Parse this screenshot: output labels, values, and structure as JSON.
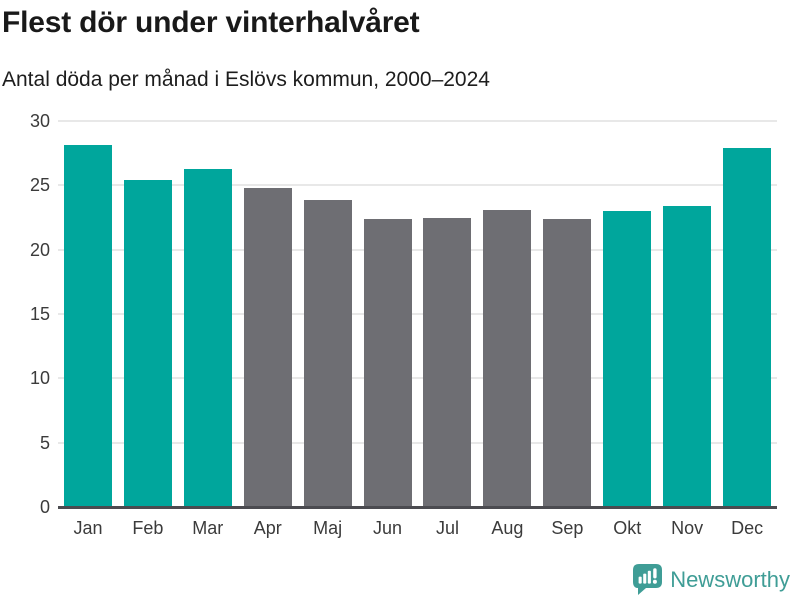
{
  "chart_data": {
    "type": "bar",
    "title": "Flest dör under vinterhalvåret",
    "subtitle": "Antal döda per månad i Eslövs kommun, 2000–2024",
    "categories": [
      "Jan",
      "Feb",
      "Mar",
      "Apr",
      "Maj",
      "Jun",
      "Jul",
      "Aug",
      "Sep",
      "Okt",
      "Nov",
      "Dec"
    ],
    "values": [
      28.1,
      25.4,
      26.3,
      24.8,
      23.9,
      22.4,
      22.5,
      23.1,
      22.4,
      23.0,
      23.4,
      27.9
    ],
    "bar_colors": [
      "#00a69c",
      "#00a69c",
      "#00a69c",
      "#6e6e73",
      "#6e6e73",
      "#6e6e73",
      "#6e6e73",
      "#6e6e73",
      "#6e6e73",
      "#00a69c",
      "#00a69c",
      "#00a69c"
    ],
    "highlight_months": [
      "Jan",
      "Feb",
      "Mar",
      "Okt",
      "Nov",
      "Dec"
    ],
    "xlabel": "",
    "ylabel": "",
    "ylim": [
      0,
      30
    ],
    "yticks": [
      0,
      5,
      10,
      15,
      20,
      25,
      30
    ],
    "grid": true,
    "legend": false
  },
  "colors": {
    "bar_highlight": "#00a69c",
    "bar_base": "#6e6e73",
    "gridline": "#e8e8e8",
    "axis_line": "#4b4b50",
    "title_text": "#191919",
    "axis_text": "#3b3b3b",
    "brand_teal": "#3f9d96"
  },
  "footer": {
    "brand_label": "Newsworthy",
    "logo_icon": "newsworthy-speech-bubble-chart-icon"
  }
}
